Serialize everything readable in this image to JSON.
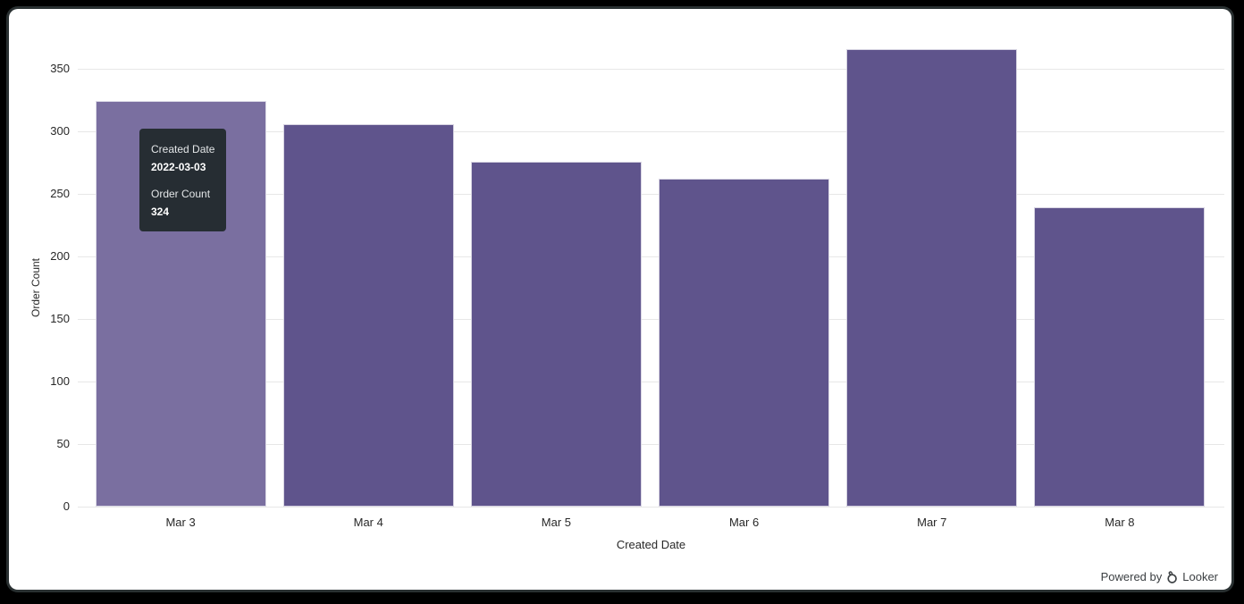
{
  "window": {
    "background": "#000000",
    "card_background": "#ffffff",
    "frame_border": "#2a3132"
  },
  "chart_data": {
    "type": "bar",
    "title": "",
    "categories": [
      "Mar 3",
      "Mar 4",
      "Mar 5",
      "Mar 6",
      "Mar 7",
      "Mar 8"
    ],
    "series": [
      {
        "name": "Order Count",
        "values": [
          324,
          306,
          276,
          262,
          366,
          239
        ]
      }
    ],
    "xlabel": "Created Date",
    "ylabel": "Order Count",
    "ylim": [
      0,
      380
    ],
    "yticks": [
      0,
      50,
      100,
      150,
      200,
      250,
      300,
      350
    ],
    "grid": "horizontal",
    "legend": "none",
    "bar_color": "#5f548c",
    "hover_color": "#7a6fa0",
    "hovered_index": 0,
    "gridline_color": "#e7e7e7",
    "tick_label_color": "#282828"
  },
  "tooltip": {
    "background": "#262d33",
    "rows": [
      {
        "label": "Created Date",
        "value": "2022-03-03"
      },
      {
        "label": "Order Count",
        "value": "324"
      }
    ]
  },
  "footer": {
    "powered_by": "Powered by",
    "brand": "Looker"
  }
}
